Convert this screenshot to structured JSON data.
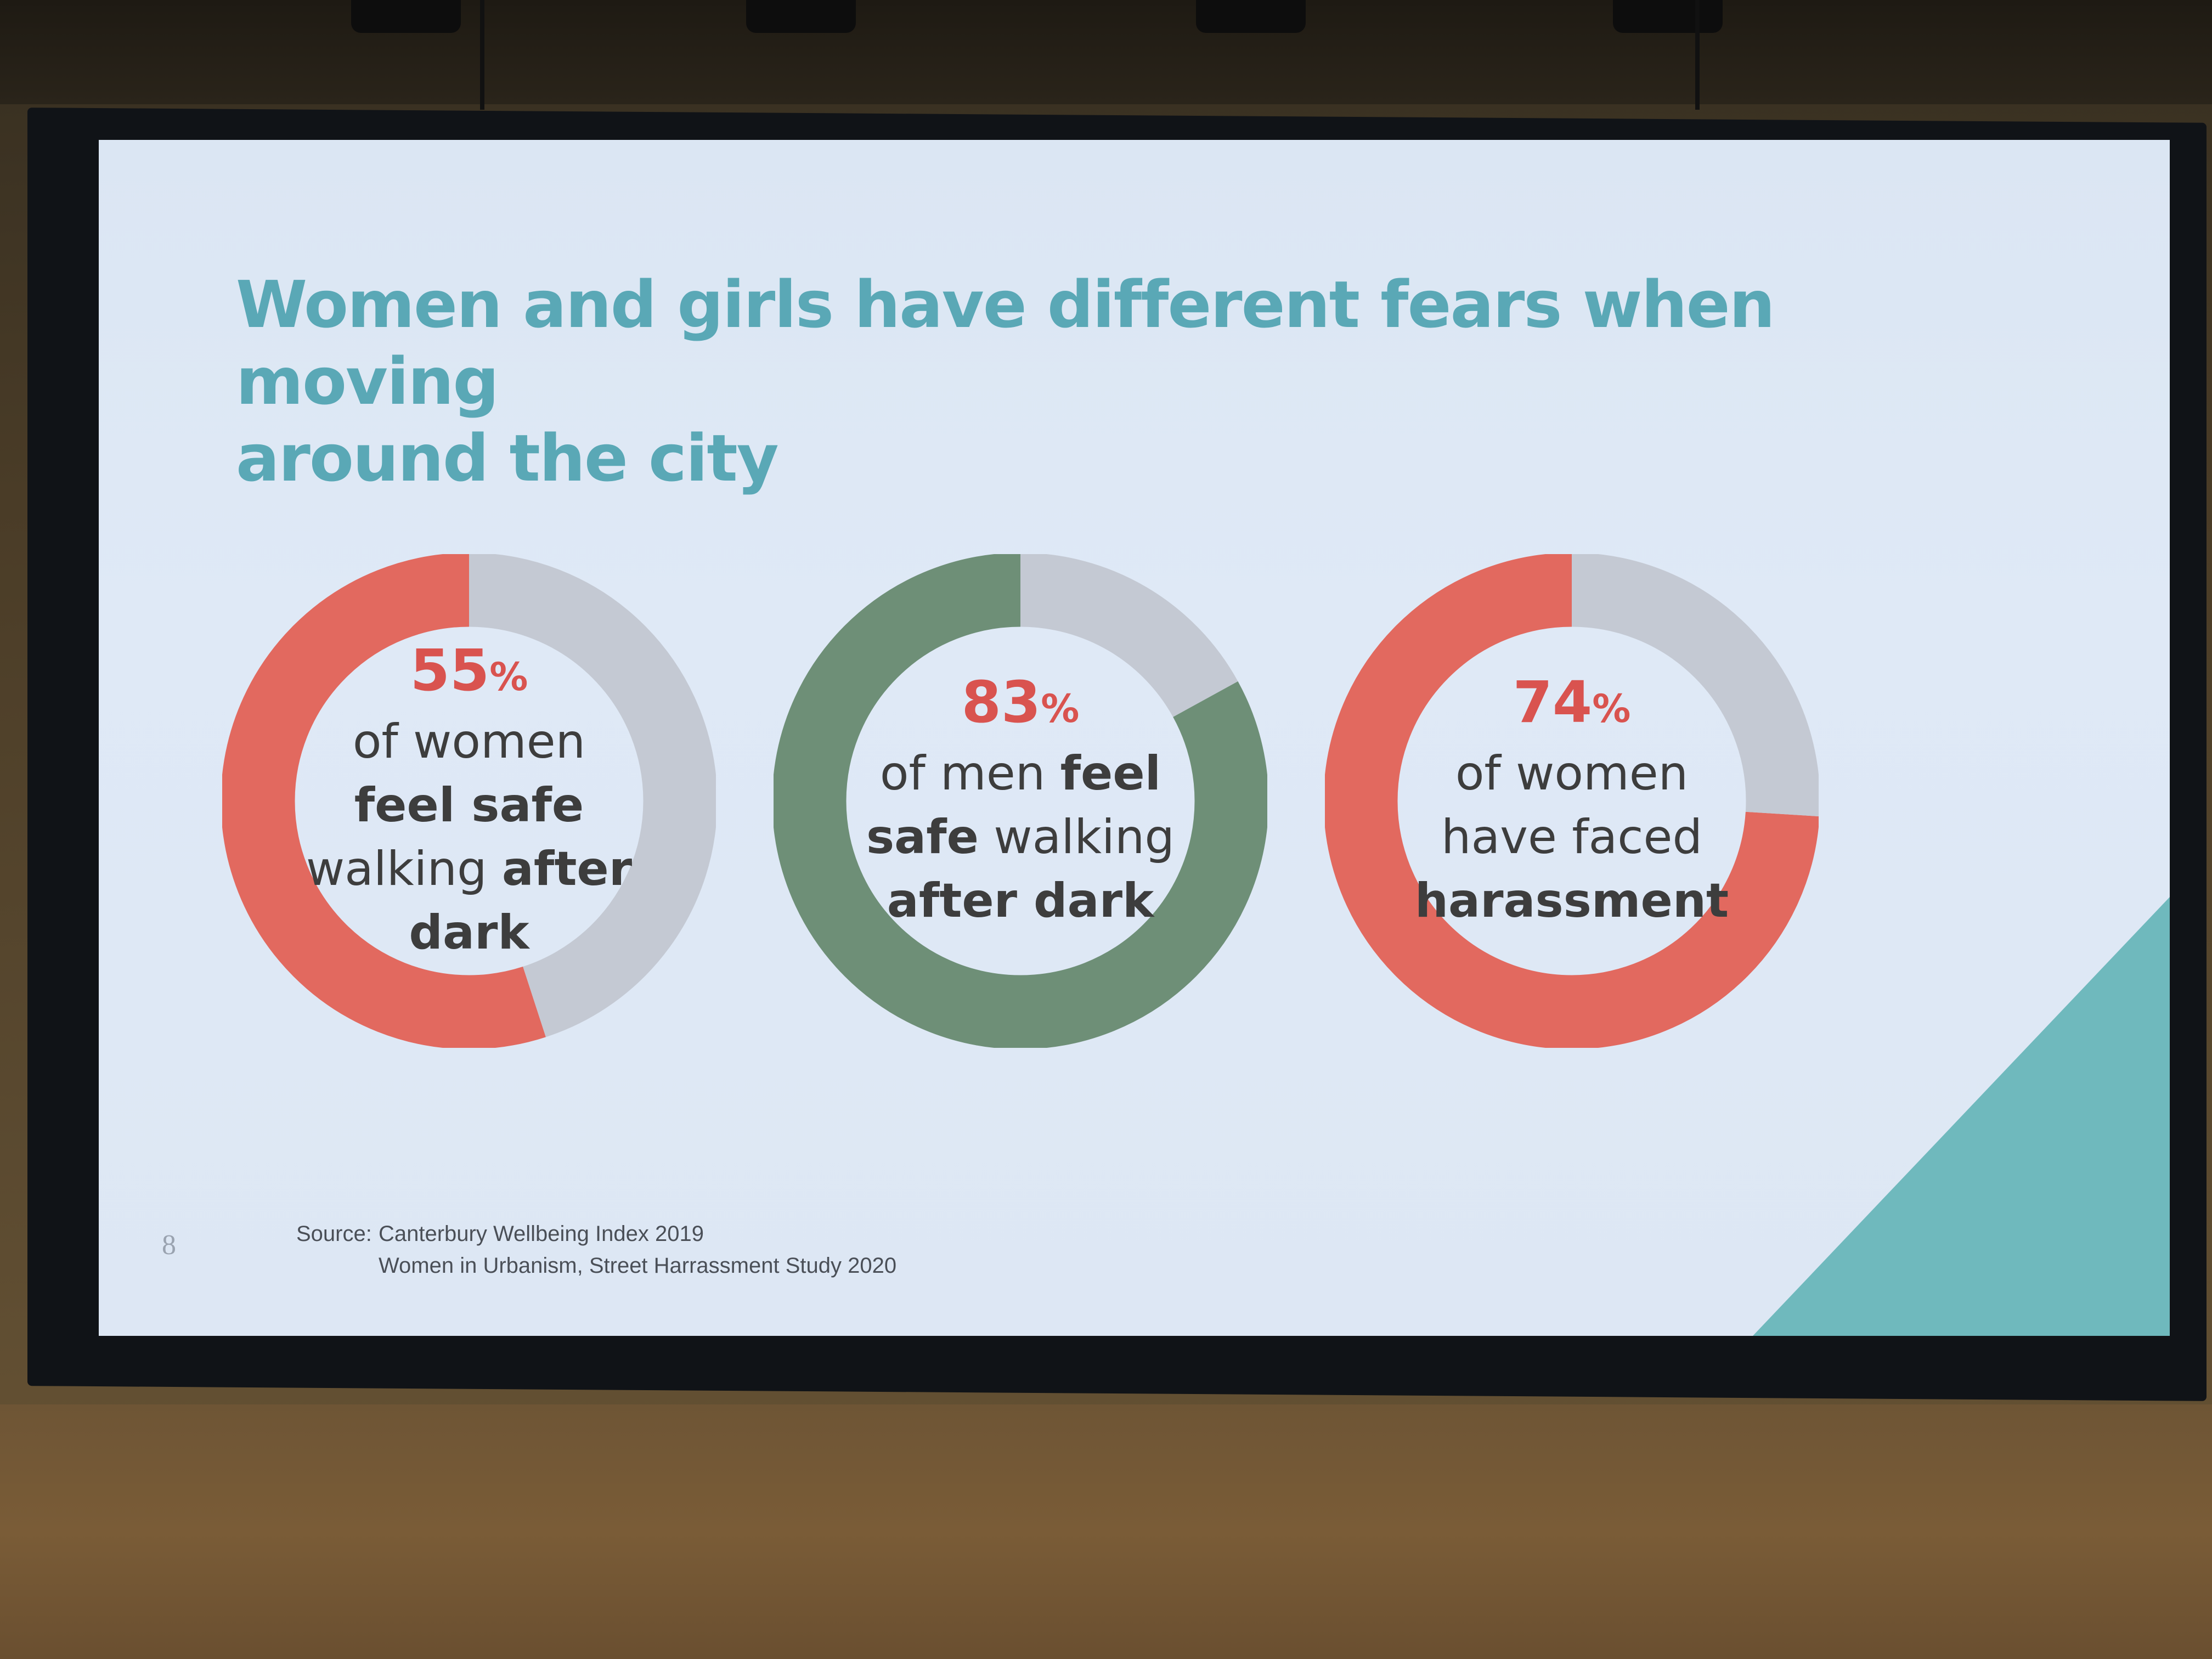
{
  "slide": {
    "title_line1": "Women and girls have different fears when moving",
    "title_line2": "around the city",
    "page_number": "8",
    "source_label": "Source:",
    "source_line1": "Canterbury Wellbeing Index 2019",
    "source_line2": "Women in Urbanism, Street Harrassment Study 2020"
  },
  "colors": {
    "red": "#e2695f",
    "green": "#6e8f77",
    "grey": "#c4c9d3",
    "title": "#5aa8b6",
    "pct_text": "#d9534f"
  },
  "chart_data": [
    {
      "type": "pie",
      "style": "donut",
      "values": [
        55,
        45
      ],
      "colors": [
        "#e2695f",
        "#c4c9d3"
      ],
      "label_pct": "55",
      "label_pct_sign": "%",
      "label_lines": [
        {
          "parts": [
            {
              "text": "of women",
              "bold": false
            }
          ]
        },
        {
          "parts": [
            {
              "text": "feel safe",
              "bold": true
            }
          ]
        },
        {
          "parts": [
            {
              "text": "walking ",
              "bold": false
            },
            {
              "text": "after",
              "bold": true
            }
          ]
        },
        {
          "parts": [
            {
              "text": "dark",
              "bold": true
            }
          ]
        }
      ]
    },
    {
      "type": "pie",
      "style": "donut",
      "values": [
        83,
        17
      ],
      "colors": [
        "#6e8f77",
        "#c4c9d3"
      ],
      "label_pct": "83",
      "label_pct_sign": "%",
      "label_lines": [
        {
          "parts": [
            {
              "text": "of men ",
              "bold": false
            },
            {
              "text": "feel",
              "bold": true
            }
          ]
        },
        {
          "parts": [
            {
              "text": "safe",
              "bold": true
            },
            {
              "text": " walking",
              "bold": false
            }
          ]
        },
        {
          "parts": [
            {
              "text": "after dark",
              "bold": true
            }
          ]
        }
      ]
    },
    {
      "type": "pie",
      "style": "donut",
      "values": [
        74,
        26
      ],
      "colors": [
        "#e2695f",
        "#c4c9d3"
      ],
      "label_pct": "74",
      "label_pct_sign": "%",
      "label_lines": [
        {
          "parts": [
            {
              "text": "of women",
              "bold": false
            }
          ]
        },
        {
          "parts": [
            {
              "text": "have faced",
              "bold": false
            }
          ]
        },
        {
          "parts": [
            {
              "text": "harassment",
              "bold": true
            }
          ]
        }
      ]
    }
  ]
}
